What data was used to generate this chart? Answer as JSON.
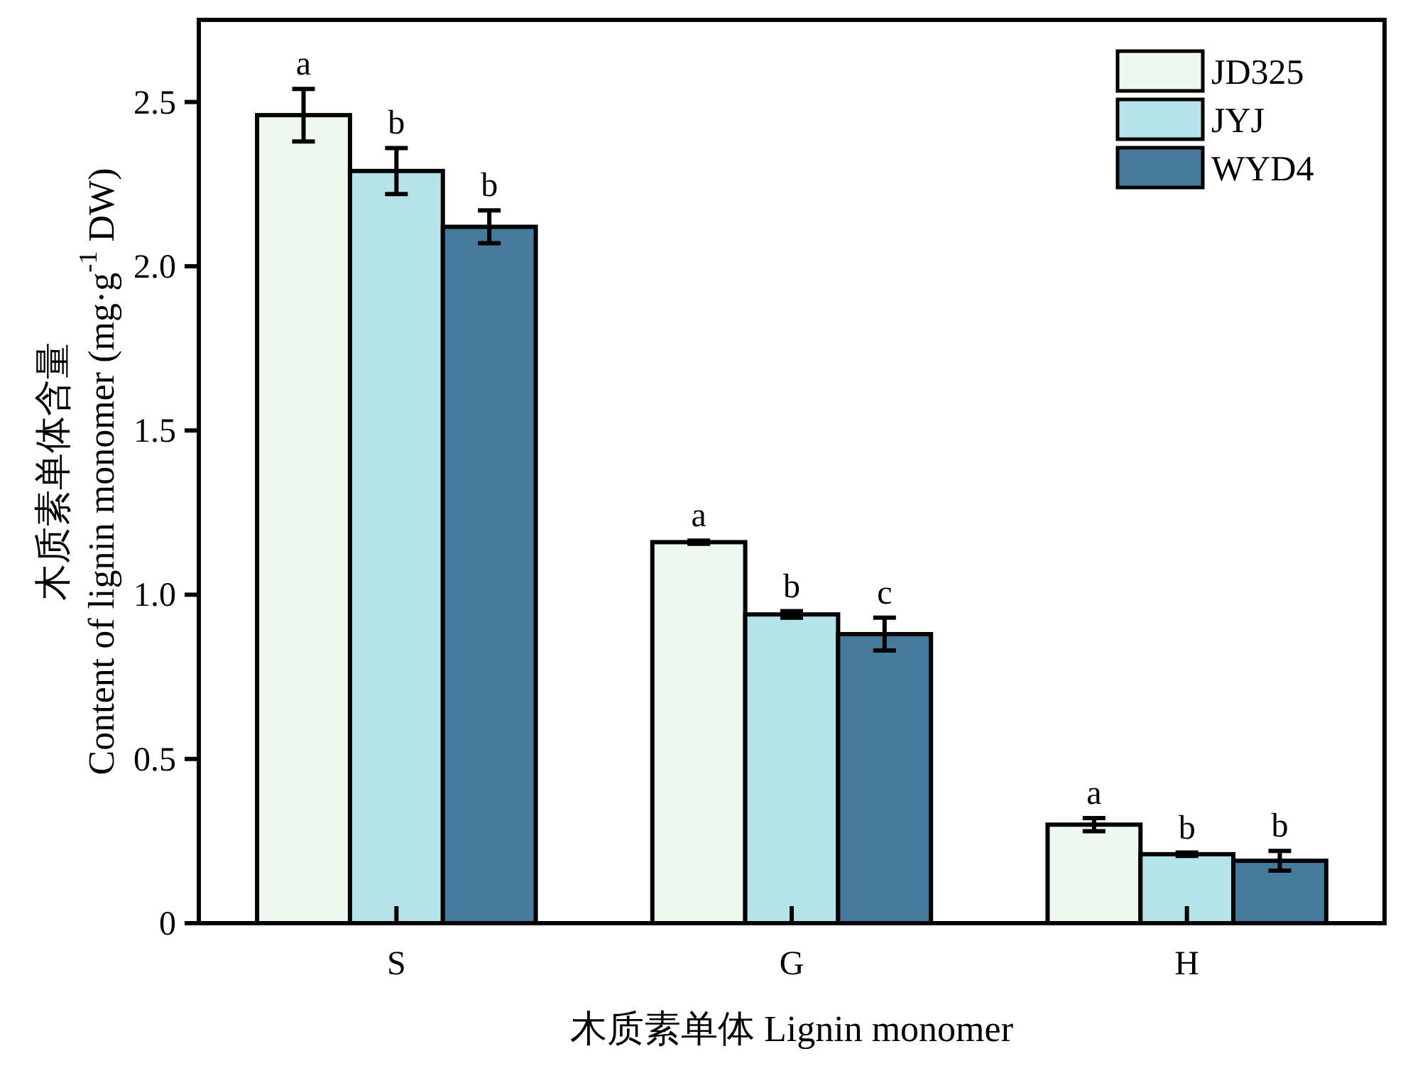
{
  "chart_data": {
    "type": "bar",
    "xlabel": "木质素单体 Lignin monomer",
    "ylabel": "木质素单体含量\nContent of lignin monomer (mg·g$^{-1}$ DW)",
    "categories": [
      "S",
      "G",
      "H"
    ],
    "series": [
      {
        "name": "JD325",
        "color": "#eef8ee",
        "values": [
          2.46,
          1.16,
          0.3
        ],
        "errors": [
          0.08,
          0.005,
          0.02
        ],
        "value_labels": [
          "a",
          "a",
          "a"
        ]
      },
      {
        "name": "JYJ",
        "color": "#b4e3e9",
        "values": [
          2.29,
          0.94,
          0.21
        ],
        "errors": [
          0.07,
          0.01,
          0.005
        ],
        "value_labels": [
          "b",
          "b",
          "b"
        ]
      },
      {
        "name": "WYD4",
        "color": "#467b9e",
        "values": [
          2.12,
          0.88,
          0.19
        ],
        "errors": [
          0.05,
          0.05,
          0.03
        ],
        "value_labels": [
          "b",
          "c",
          "b"
        ]
      }
    ],
    "ylim": [
      0,
      2.75
    ],
    "yticks": [
      {
        "value": 0,
        "label": "0"
      },
      {
        "value": 0.5,
        "label": "0.5"
      },
      {
        "value": 1,
        "label": "1.0"
      },
      {
        "value": 1.5,
        "label": "1.5"
      },
      {
        "value": 2,
        "label": "2.0"
      },
      {
        "value": 2.5,
        "label": "2.5"
      }
    ],
    "legend": "top right",
    "grid": false
  }
}
